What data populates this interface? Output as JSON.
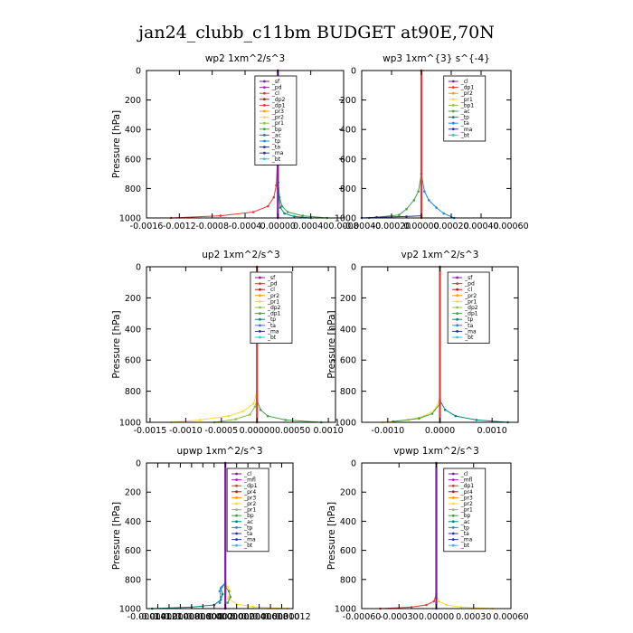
{
  "suptitle": "jan24_clubb_c11bm  BUDGET at90E,70N",
  "colors": {
    "purple": "#7b1fa2",
    "magenta": "#9c27b0",
    "red": "#e53935",
    "darkred": "#b71c1c",
    "orange": "#ff9800",
    "yellow": "#fdd835",
    "lightgreen": "#8bc34a",
    "green": "#43a047",
    "teal": "#00897b",
    "blue": "#1e88e5",
    "navy": "#283593",
    "cyan": "#26c6da"
  },
  "chart_data": [
    {
      "type": "line",
      "title": "wp2   1xm^2/s^3",
      "ylabel": "Pressure [hPa]",
      "xlim": [
        -0.0016,
        0.0008
      ],
      "ylim": [
        0,
        1000
      ],
      "xticks": [
        -0.0016,
        -0.0012,
        -0.0008,
        -0.0004,
        0.0,
        0.0004,
        0.0008
      ],
      "xticklabels": [
        "-0.0016",
        "-0.0012",
        "-0.0008",
        "-0.0004",
        "0.00000",
        "0.00040",
        "0.0008"
      ],
      "yticks": [
        0,
        200,
        400,
        600,
        800,
        1000
      ],
      "legend": [
        "_sf",
        "_pd",
        "_cl",
        "_dp2",
        "_dp1",
        "_pr3",
        "_pr2",
        "_pr1",
        "_bp",
        "_ac",
        "_tp",
        "_ta",
        "_ma",
        "_bt"
      ],
      "legend_colors": [
        "purple",
        "magenta",
        "red",
        "darkred",
        "red",
        "orange",
        "yellow",
        "lightgreen",
        "green",
        "teal",
        "blue",
        "navy",
        "navy",
        "cyan"
      ],
      "series": [
        {
          "color": "red",
          "points": [
            [
              -0.0013,
              1000
            ],
            [
              -0.0007,
              985
            ],
            [
              -0.0003,
              960
            ],
            [
              -0.00012,
              920
            ],
            [
              -5e-05,
              860
            ],
            [
              -2e-05,
              780
            ],
            [
              -5e-06,
              600
            ],
            [
              0,
              400
            ],
            [
              0,
              0
            ]
          ]
        },
        {
          "color": "green",
          "points": [
            [
              0.0006,
              1000
            ],
            [
              0.0003,
              985
            ],
            [
              0.00012,
              960
            ],
            [
              5e-05,
              920
            ],
            [
              2e-05,
              860
            ],
            [
              5e-06,
              760
            ],
            [
              0,
              500
            ],
            [
              0,
              0
            ]
          ]
        },
        {
          "color": "teal",
          "points": [
            [
              0.0004,
              1000
            ],
            [
              0.0002,
              990
            ],
            [
              8e-05,
              970
            ],
            [
              3e-05,
              930
            ],
            [
              0,
              800
            ],
            [
              0,
              0
            ]
          ]
        },
        {
          "color": "purple",
          "points": [
            [
              0,
              1000
            ],
            [
              0,
              0
            ]
          ]
        }
      ]
    },
    {
      "type": "line",
      "title": "wp3   1xm^{3} s^{-4}",
      "ylabel": "",
      "xlim": [
        -0.0004,
        0.0006
      ],
      "ylim": [
        0,
        1000
      ],
      "xticks": [
        -0.0004,
        -0.0002,
        0.0,
        0.0002,
        0.0004,
        0.0006
      ],
      "xticklabels": [
        "-0.00040",
        "-0.00020",
        "0.00000",
        "0.00020",
        "0.00040",
        "0.00060"
      ],
      "yticks": [
        0,
        200,
        400,
        600,
        800,
        1000
      ],
      "legend": [
        "_cl",
        "_dp1",
        "_pr2",
        "_pr1",
        "_bp1",
        "_ac",
        "_tp",
        "_ta",
        "_ma",
        "_bt"
      ],
      "legend_colors": [
        "purple",
        "red",
        "orange",
        "yellow",
        "lightgreen",
        "green",
        "teal",
        "blue",
        "navy",
        "cyan"
      ],
      "series": [
        {
          "color": "green",
          "points": [
            [
              -0.00035,
              1000
            ],
            [
              -0.00015,
              980
            ],
            [
              -0.0001,
              940
            ],
            [
              -5e-05,
              880
            ],
            [
              -2e-05,
              820
            ],
            [
              0,
              700
            ],
            [
              0,
              0
            ]
          ]
        },
        {
          "color": "blue",
          "points": [
            [
              0.00022,
              1000
            ],
            [
              0.00015,
              970
            ],
            [
              0.0001,
              930
            ],
            [
              5e-05,
              880
            ],
            [
              2e-05,
              820
            ],
            [
              0,
              700
            ],
            [
              0,
              0
            ]
          ]
        },
        {
          "color": "navy",
          "points": [
            [
              -0.0004,
              1000
            ],
            [
              -0.0003,
              995
            ],
            [
              -0.0001,
              990
            ],
            [
              0,
              985
            ]
          ]
        },
        {
          "color": "red",
          "points": [
            [
              0,
              1000
            ],
            [
              0,
              0
            ]
          ]
        }
      ]
    },
    {
      "type": "line",
      "title": "up2   1xm^2/s^3",
      "ylabel": "Pressure [hPa]",
      "xlim": [
        -0.00155,
        0.0011
      ],
      "ylim": [
        0,
        1000
      ],
      "xticks": [
        -0.0015,
        -0.001,
        -0.0005,
        0.0,
        0.0005,
        0.001
      ],
      "xticklabels": [
        "-0.0015",
        "-0.0010",
        "-0.0005",
        "0.00000",
        "0.00050",
        "0.0010"
      ],
      "yticks": [
        0,
        200,
        400,
        600,
        800,
        1000
      ],
      "legend": [
        "_sf",
        "_pd",
        "_cl",
        "_pr2",
        "_pr1",
        "_dp2",
        "_dp1",
        "_tp",
        "_ta",
        "_ma",
        "_bt"
      ],
      "legend_colors": [
        "purple",
        "red",
        "darkred",
        "orange",
        "yellow",
        "lightgreen",
        "green",
        "teal",
        "blue",
        "navy",
        "cyan"
      ],
      "series": [
        {
          "color": "yellow",
          "points": [
            [
              -0.0012,
              1000
            ],
            [
              -0.0008,
              985
            ],
            [
              -0.0004,
              960
            ],
            [
              -0.0002,
              930
            ],
            [
              -5e-05,
              880
            ],
            [
              0,
              800
            ],
            [
              0,
              0
            ]
          ]
        },
        {
          "color": "lightgreen",
          "points": [
            [
              -0.0006,
              1000
            ],
            [
              -0.0003,
              980
            ],
            [
              -0.0001,
              950
            ],
            [
              -3e-05,
              900
            ],
            [
              0,
              850
            ],
            [
              0,
              0
            ]
          ]
        },
        {
          "color": "green",
          "points": [
            [
              0.0009,
              1000
            ],
            [
              0.0004,
              985
            ],
            [
              0.00015,
              960
            ],
            [
              5e-05,
              920
            ],
            [
              0,
              860
            ],
            [
              0,
              0
            ]
          ]
        },
        {
          "color": "red",
          "points": [
            [
              0,
              1000
            ],
            [
              0,
              0
            ]
          ]
        }
      ]
    },
    {
      "type": "line",
      "title": "vp2   1xm^2/s^3",
      "ylabel": "Pressure [hPa]",
      "xlim": [
        -0.0015,
        0.0015
      ],
      "ylim": [
        0,
        1000
      ],
      "xticks": [
        -0.001,
        0.0,
        0.001
      ],
      "xticklabels": [
        "-0.0010",
        "0.0000",
        "0.0010"
      ],
      "yticks": [
        0,
        200,
        400,
        600,
        800,
        1000
      ],
      "legend": [
        "_sf",
        "_pd",
        "_cl",
        "_pr2",
        "_pr1",
        "_dp2",
        "_dp1",
        "_tp",
        "_ta",
        "_ma",
        "_bt"
      ],
      "legend_colors": [
        "purple",
        "red",
        "darkred",
        "orange",
        "yellow",
        "lightgreen",
        "green",
        "teal",
        "blue",
        "navy",
        "cyan"
      ],
      "series": [
        {
          "color": "yellow",
          "points": [
            [
              -0.0011,
              1000
            ],
            [
              -0.0006,
              985
            ],
            [
              -0.0003,
              960
            ],
            [
              -0.0001,
              920
            ],
            [
              0,
              850
            ],
            [
              0,
              0
            ]
          ]
        },
        {
          "color": "green",
          "points": [
            [
              -0.0009,
              995
            ],
            [
              -0.0004,
              975
            ],
            [
              -0.00015,
              945
            ],
            [
              0,
              880
            ],
            [
              0,
              0
            ]
          ]
        },
        {
          "color": "teal",
          "points": [
            [
              0.0013,
              1000
            ],
            [
              0.0007,
              985
            ],
            [
              0.0003,
              960
            ],
            [
              0.0001,
              920
            ],
            [
              0,
              860
            ],
            [
              0,
              0
            ]
          ]
        },
        {
          "color": "red",
          "points": [
            [
              0,
              1000
            ],
            [
              0,
              0
            ]
          ]
        }
      ]
    },
    {
      "type": "line",
      "title": "upwp   1xm^2/s^3",
      "ylabel": "Pressure [hPa]",
      "xlim": [
        -0.00014,
        0.00012
      ],
      "ylim": [
        0,
        1000
      ],
      "xticks": [
        -0.00014,
        -0.00012,
        -0.0001,
        -8e-05,
        -6e-05,
        -4e-05,
        -2e-05,
        0.0,
        2e-05,
        4e-05,
        6e-05,
        8e-05,
        0.0001,
        0.00012
      ],
      "xticklabels": [
        "-0.00014",
        "-0.00012",
        "-0.00010",
        "-0.00008",
        "-0.00006",
        "-0.00004",
        "-0.00002",
        "0.00000",
        "0.00002",
        "0.00004",
        "0.00006",
        "0.00008",
        "0.00010",
        "0.00012"
      ],
      "yticks": [
        0,
        200,
        400,
        600,
        800,
        1000
      ],
      "legend": [
        "_cl",
        "_mfl",
        "_dp1",
        "_pr4",
        "_pr3",
        "_pr2",
        "_pr1",
        "_bp",
        "_ac",
        "_tp",
        "_ta",
        "_ma",
        "_bt"
      ],
      "legend_colors": [
        "purple",
        "magenta",
        "red",
        "darkred",
        "orange",
        "yellow",
        "lightgreen",
        "green",
        "teal",
        "blue",
        "navy",
        "navy",
        "cyan"
      ],
      "series": [
        {
          "color": "teal",
          "points": [
            [
              -0.00013,
              1000
            ],
            [
              -6e-05,
              990
            ],
            [
              -2e-05,
              975
            ],
            [
              -8e-06,
              940
            ],
            [
              -5e-06,
              900
            ],
            [
              -8e-06,
              860
            ],
            [
              0,
              820
            ],
            [
              0,
              0
            ]
          ]
        },
        {
          "color": "yellow",
          "points": [
            [
              0.00011,
              1000
            ],
            [
              5e-05,
              988
            ],
            [
              2e-05,
              970
            ],
            [
              5e-06,
              930
            ],
            [
              8e-06,
              880
            ],
            [
              4e-06,
              850
            ],
            [
              0,
              830
            ],
            [
              0,
              0
            ]
          ]
        },
        {
          "color": "blue",
          "points": [
            [
              -1e-05,
              960
            ],
            [
              -8e-06,
              920
            ],
            [
              -1e-05,
              880
            ],
            [
              -6e-06,
              850
            ],
            [
              0,
              830
            ]
          ]
        },
        {
          "color": "green",
          "points": [
            [
              4e-06,
              960
            ],
            [
              9e-06,
              920
            ],
            [
              6e-06,
              880
            ],
            [
              0,
              850
            ]
          ]
        },
        {
          "color": "purple",
          "points": [
            [
              0,
              1000
            ],
            [
              0,
              0
            ]
          ]
        }
      ]
    },
    {
      "type": "line",
      "title": "vpwp   1xm^2/s^3",
      "ylabel": "Pressure [hPa]",
      "xlim": [
        -0.0006,
        0.0006
      ],
      "ylim": [
        0,
        1000
      ],
      "xticks": [
        -0.0006,
        -0.0003,
        0.0,
        0.0003,
        0.0006
      ],
      "xticklabels": [
        "-0.00060",
        "-0.00030",
        "0.00000",
        "0.00030",
        "0.00060"
      ],
      "yticks": [
        0,
        200,
        400,
        600,
        800,
        1000
      ],
      "legend": [
        "_cl",
        "_mfl",
        "_dp1",
        "_pr4",
        "_pr3",
        "_pr2",
        "_pr1",
        "_bp",
        "_ac",
        "_tp",
        "_ta",
        "_ma",
        "_bt"
      ],
      "legend_colors": [
        "purple",
        "magenta",
        "red",
        "darkred",
        "orange",
        "yellow",
        "lightgreen",
        "green",
        "teal",
        "blue",
        "navy",
        "navy",
        "cyan"
      ],
      "series": [
        {
          "color": "red",
          "points": [
            [
              -0.00045,
              1000
            ],
            [
              -0.0002,
              990
            ],
            [
              -8e-05,
              975
            ],
            [
              -2e-05,
              950
            ],
            [
              0,
              900
            ],
            [
              0,
              0
            ]
          ]
        },
        {
          "color": "yellow",
          "points": [
            [
              0.00045,
              1000
            ],
            [
              0.0002,
              990
            ],
            [
              8e-05,
              975
            ],
            [
              2e-05,
              950
            ],
            [
              0,
              900
            ],
            [
              0,
              0
            ]
          ]
        },
        {
          "color": "purple",
          "points": [
            [
              0,
              1000
            ],
            [
              0,
              0
            ]
          ]
        }
      ]
    }
  ]
}
